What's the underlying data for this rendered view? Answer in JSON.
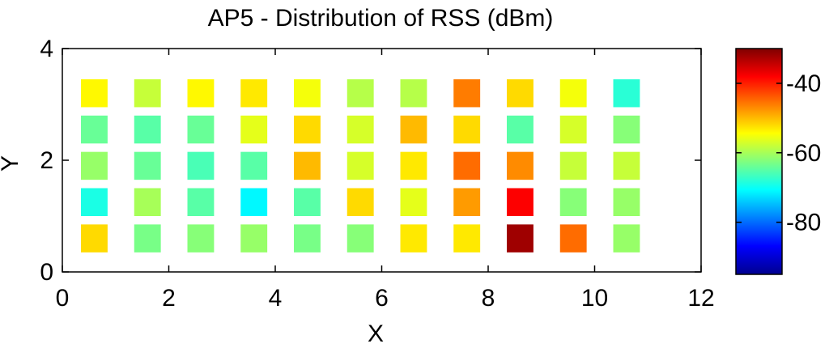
{
  "chart_data": {
    "type": "heatmap",
    "title": "AP5 - Distribution of RSS (dBm)",
    "xlabel": "X",
    "ylabel": "Y",
    "xlim": [
      0,
      12
    ],
    "ylim": [
      0,
      4
    ],
    "xticks": [
      "0",
      "2",
      "4",
      "6",
      "8",
      "10",
      "12"
    ],
    "yticks": [
      "0",
      "2",
      "4"
    ],
    "grid": false,
    "colorbar": {
      "colormap": "jet",
      "range": [
        -95,
        -30
      ],
      "ticks": [
        "-40",
        "-60",
        "-80"
      ]
    },
    "cell_size": 0.5,
    "x": [
      0.6,
      1.6,
      2.6,
      3.6,
      4.6,
      5.6,
      6.6,
      7.6,
      8.6,
      9.6,
      10.6
    ],
    "y": [
      3.2,
      2.55,
      1.9,
      1.25,
      0.6
    ],
    "values": [
      [
        -54,
        -58,
        -54,
        -53,
        -55,
        -59,
        -59,
        -46,
        -52,
        -55,
        -68
      ],
      [
        -64,
        -65,
        -64,
        -56,
        -52,
        -57,
        -50,
        -52,
        -65,
        -57,
        -62
      ],
      [
        -61,
        -64,
        -66,
        -65,
        -50,
        -57,
        -53,
        -45,
        -47,
        -58,
        -58
      ],
      [
        -69,
        -60,
        -65,
        -71,
        -65,
        -52,
        -56,
        -48,
        -38,
        -62,
        -61
      ],
      [
        -52,
        -63,
        -62,
        -61,
        -63,
        -62,
        -53,
        -53,
        -32,
        -45,
        -61
      ]
    ]
  }
}
